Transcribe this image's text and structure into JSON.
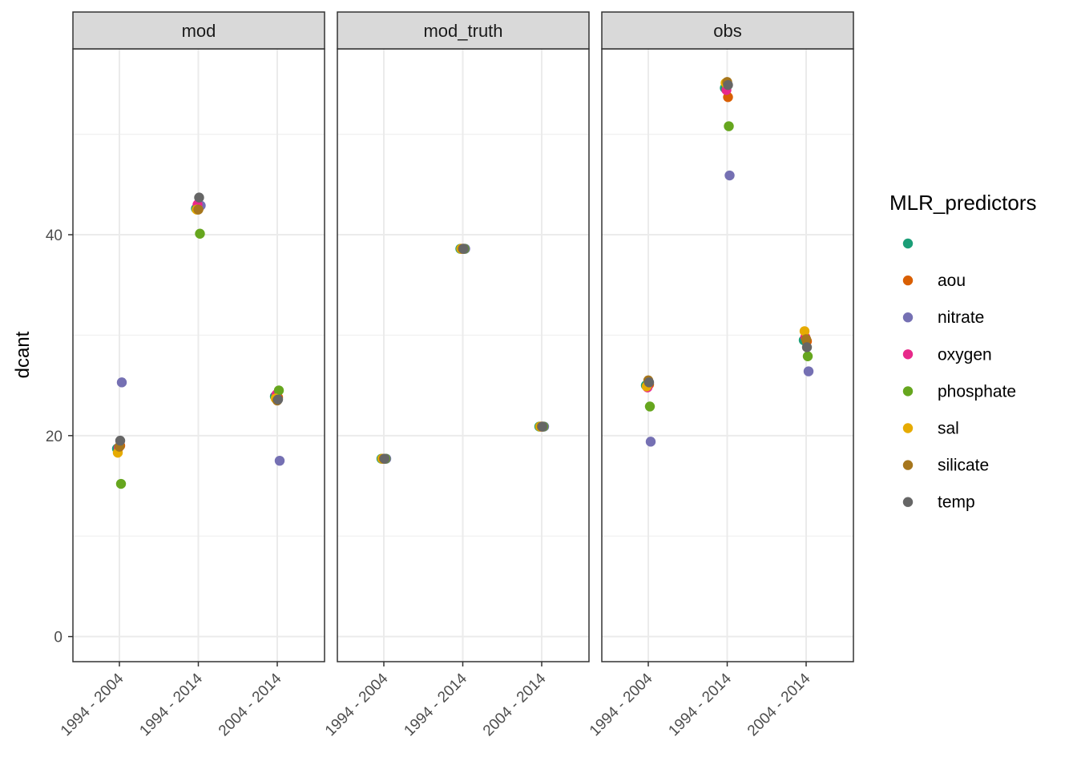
{
  "chart_data": {
    "type": "scatter",
    "facet_variable": "data_source",
    "facets": [
      "mod",
      "mod_truth",
      "obs"
    ],
    "categories": [
      "1994 - 2004",
      "1994 - 2014",
      "2004 - 2014"
    ],
    "ylabel": "dcant",
    "xlabel": "",
    "ylim": [
      -2.5,
      58.5
    ],
    "y_ticks": [
      0,
      20,
      40
    ],
    "grid": true,
    "legend": {
      "title": "MLR_predictors",
      "placement": "right",
      "entries": [
        {
          "label": "",
          "color": "#1B9E77"
        },
        {
          "label": "aou",
          "color": "#D95F02"
        },
        {
          "label": "nitrate",
          "color": "#7570B3"
        },
        {
          "label": "oxygen",
          "color": "#E7298A"
        },
        {
          "label": "phosphate",
          "color": "#66A61E"
        },
        {
          "label": "sal",
          "color": "#E6AB02"
        },
        {
          "label": "silicate",
          "color": "#A6761D"
        },
        {
          "label": "temp",
          "color": "#666666"
        }
      ]
    },
    "points": [
      {
        "facet": "mod",
        "x": "1994 - 2004",
        "predictor": "",
        "y": 18.7
      },
      {
        "facet": "mod",
        "x": "1994 - 2004",
        "predictor": "aou",
        "y": 19.0
      },
      {
        "facet": "mod",
        "x": "1994 - 2004",
        "predictor": "nitrate",
        "y": 25.3
      },
      {
        "facet": "mod",
        "x": "1994 - 2004",
        "predictor": "oxygen",
        "y": 18.8
      },
      {
        "facet": "mod",
        "x": "1994 - 2004",
        "predictor": "phosphate",
        "y": 15.2
      },
      {
        "facet": "mod",
        "x": "1994 - 2004",
        "predictor": "sal",
        "y": 18.3
      },
      {
        "facet": "mod",
        "x": "1994 - 2004",
        "predictor": "silicate",
        "y": 18.9
      },
      {
        "facet": "mod",
        "x": "1994 - 2004",
        "predictor": "temp",
        "y": 19.5
      },
      {
        "facet": "mod",
        "x": "1994 - 2014",
        "predictor": "",
        "y": 42.6
      },
      {
        "facet": "mod",
        "x": "1994 - 2014",
        "predictor": "aou",
        "y": 42.7
      },
      {
        "facet": "mod",
        "x": "1994 - 2014",
        "predictor": "nitrate",
        "y": 42.9
      },
      {
        "facet": "mod",
        "x": "1994 - 2014",
        "predictor": "oxygen",
        "y": 43.0
      },
      {
        "facet": "mod",
        "x": "1994 - 2014",
        "predictor": "phosphate",
        "y": 40.1
      },
      {
        "facet": "mod",
        "x": "1994 - 2014",
        "predictor": "sal",
        "y": 42.5
      },
      {
        "facet": "mod",
        "x": "1994 - 2014",
        "predictor": "silicate",
        "y": 42.5
      },
      {
        "facet": "mod",
        "x": "1994 - 2014",
        "predictor": "temp",
        "y": 43.7
      },
      {
        "facet": "mod",
        "x": "2004 - 2014",
        "predictor": "",
        "y": 23.9
      },
      {
        "facet": "mod",
        "x": "2004 - 2014",
        "predictor": "aou",
        "y": 23.8
      },
      {
        "facet": "mod",
        "x": "2004 - 2014",
        "predictor": "nitrate",
        "y": 17.5
      },
      {
        "facet": "mod",
        "x": "2004 - 2014",
        "predictor": "oxygen",
        "y": 24.1
      },
      {
        "facet": "mod",
        "x": "2004 - 2014",
        "predictor": "phosphate",
        "y": 24.5
      },
      {
        "facet": "mod",
        "x": "2004 - 2014",
        "predictor": "sal",
        "y": 23.7
      },
      {
        "facet": "mod",
        "x": "2004 - 2014",
        "predictor": "silicate",
        "y": 23.5
      },
      {
        "facet": "mod",
        "x": "2004 - 2014",
        "predictor": "temp",
        "y": 23.6
      },
      {
        "facet": "mod_truth",
        "x": "1994 - 2004",
        "predictor": "",
        "y": 17.7
      },
      {
        "facet": "mod_truth",
        "x": "1994 - 2004",
        "predictor": "aou",
        "y": 17.7
      },
      {
        "facet": "mod_truth",
        "x": "1994 - 2004",
        "predictor": "nitrate",
        "y": 17.7
      },
      {
        "facet": "mod_truth",
        "x": "1994 - 2004",
        "predictor": "oxygen",
        "y": 17.7
      },
      {
        "facet": "mod_truth",
        "x": "1994 - 2004",
        "predictor": "phosphate",
        "y": 17.7
      },
      {
        "facet": "mod_truth",
        "x": "1994 - 2004",
        "predictor": "sal",
        "y": 17.7
      },
      {
        "facet": "mod_truth",
        "x": "1994 - 2004",
        "predictor": "silicate",
        "y": 17.7
      },
      {
        "facet": "mod_truth",
        "x": "1994 - 2004",
        "predictor": "temp",
        "y": 17.7
      },
      {
        "facet": "mod_truth",
        "x": "1994 - 2014",
        "predictor": "",
        "y": 38.6
      },
      {
        "facet": "mod_truth",
        "x": "1994 - 2014",
        "predictor": "aou",
        "y": 38.6
      },
      {
        "facet": "mod_truth",
        "x": "1994 - 2014",
        "predictor": "nitrate",
        "y": 38.6
      },
      {
        "facet": "mod_truth",
        "x": "1994 - 2014",
        "predictor": "oxygen",
        "y": 38.6
      },
      {
        "facet": "mod_truth",
        "x": "1994 - 2014",
        "predictor": "phosphate",
        "y": 38.6
      },
      {
        "facet": "mod_truth",
        "x": "1994 - 2014",
        "predictor": "sal",
        "y": 38.6
      },
      {
        "facet": "mod_truth",
        "x": "1994 - 2014",
        "predictor": "silicate",
        "y": 38.6
      },
      {
        "facet": "mod_truth",
        "x": "1994 - 2014",
        "predictor": "temp",
        "y": 38.6
      },
      {
        "facet": "mod_truth",
        "x": "2004 - 2014",
        "predictor": "",
        "y": 20.9
      },
      {
        "facet": "mod_truth",
        "x": "2004 - 2014",
        "predictor": "aou",
        "y": 20.9
      },
      {
        "facet": "mod_truth",
        "x": "2004 - 2014",
        "predictor": "nitrate",
        "y": 20.9
      },
      {
        "facet": "mod_truth",
        "x": "2004 - 2014",
        "predictor": "oxygen",
        "y": 20.9
      },
      {
        "facet": "mod_truth",
        "x": "2004 - 2014",
        "predictor": "phosphate",
        "y": 20.9
      },
      {
        "facet": "mod_truth",
        "x": "2004 - 2014",
        "predictor": "sal",
        "y": 20.9
      },
      {
        "facet": "mod_truth",
        "x": "2004 - 2014",
        "predictor": "silicate",
        "y": 20.9
      },
      {
        "facet": "mod_truth",
        "x": "2004 - 2014",
        "predictor": "temp",
        "y": 20.9
      },
      {
        "facet": "obs",
        "x": "1994 - 2004",
        "predictor": "",
        "y": 25.0
      },
      {
        "facet": "obs",
        "x": "1994 - 2004",
        "predictor": "aou",
        "y": 25.1
      },
      {
        "facet": "obs",
        "x": "1994 - 2004",
        "predictor": "nitrate",
        "y": 19.4
      },
      {
        "facet": "obs",
        "x": "1994 - 2004",
        "predictor": "oxygen",
        "y": 24.8
      },
      {
        "facet": "obs",
        "x": "1994 - 2004",
        "predictor": "phosphate",
        "y": 22.9
      },
      {
        "facet": "obs",
        "x": "1994 - 2004",
        "predictor": "sal",
        "y": 24.9
      },
      {
        "facet": "obs",
        "x": "1994 - 2004",
        "predictor": "silicate",
        "y": 25.5
      },
      {
        "facet": "obs",
        "x": "1994 - 2004",
        "predictor": "temp",
        "y": 25.3
      },
      {
        "facet": "obs",
        "x": "1994 - 2014",
        "predictor": "",
        "y": 54.6
      },
      {
        "facet": "obs",
        "x": "1994 - 2014",
        "predictor": "aou",
        "y": 53.7
      },
      {
        "facet": "obs",
        "x": "1994 - 2014",
        "predictor": "nitrate",
        "y": 45.9
      },
      {
        "facet": "obs",
        "x": "1994 - 2014",
        "predictor": "oxygen",
        "y": 54.4
      },
      {
        "facet": "obs",
        "x": "1994 - 2014",
        "predictor": "phosphate",
        "y": 50.8
      },
      {
        "facet": "obs",
        "x": "1994 - 2014",
        "predictor": "sal",
        "y": 55.1
      },
      {
        "facet": "obs",
        "x": "1994 - 2014",
        "predictor": "silicate",
        "y": 55.2
      },
      {
        "facet": "obs",
        "x": "1994 - 2014",
        "predictor": "temp",
        "y": 54.9
      },
      {
        "facet": "obs",
        "x": "2004 - 2014",
        "predictor": "",
        "y": 29.5
      },
      {
        "facet": "obs",
        "x": "2004 - 2014",
        "predictor": "aou",
        "y": 29.4
      },
      {
        "facet": "obs",
        "x": "2004 - 2014",
        "predictor": "nitrate",
        "y": 26.4
      },
      {
        "facet": "obs",
        "x": "2004 - 2014",
        "predictor": "oxygen",
        "y": 29.8
      },
      {
        "facet": "obs",
        "x": "2004 - 2014",
        "predictor": "phosphate",
        "y": 27.9
      },
      {
        "facet": "obs",
        "x": "2004 - 2014",
        "predictor": "sal",
        "y": 30.4
      },
      {
        "facet": "obs",
        "x": "2004 - 2014",
        "predictor": "silicate",
        "y": 29.6
      },
      {
        "facet": "obs",
        "x": "2004 - 2014",
        "predictor": "temp",
        "y": 28.8
      }
    ]
  }
}
